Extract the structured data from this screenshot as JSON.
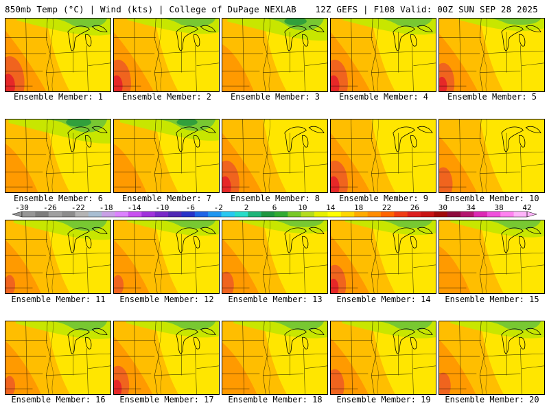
{
  "header": {
    "left": "850mb Temp (°C) | Wind (kts) | College of DuPage NEXLAB",
    "right": "12Z GEFS | F108 Valid: 00Z SUN SEP 28 2025"
  },
  "panels": [
    {
      "label": "Ensemble Member: 1",
      "warm_sw": 1.0,
      "cool_ne": 0.45
    },
    {
      "label": "Ensemble Member: 2",
      "warm_sw": 0.95,
      "cool_ne": 0.35
    },
    {
      "label": "Ensemble Member: 3",
      "warm_sw": 0.55,
      "cool_ne": 0.75
    },
    {
      "label": "Ensemble Member: 4",
      "warm_sw": 0.95,
      "cool_ne": 0.4
    },
    {
      "label": "Ensemble Member: 5",
      "warm_sw": 0.9,
      "cool_ne": 0.15
    },
    {
      "label": "Ensemble Member: 6",
      "warm_sw": 0.6,
      "cool_ne": 0.85
    },
    {
      "label": "Ensemble Member: 7",
      "warm_sw": 0.6,
      "cool_ne": 0.7
    },
    {
      "label": "Ensemble Member: 8",
      "warm_sw": 0.95,
      "cool_ne": 0.05
    },
    {
      "label": "Ensemble Member: 9",
      "warm_sw": 0.95,
      "cool_ne": 0.05
    },
    {
      "label": "Ensemble Member: 10",
      "warm_sw": 0.85,
      "cool_ne": 0.05
    },
    {
      "label": "Ensemble Member: 11",
      "warm_sw": 0.75,
      "cool_ne": 0.6
    },
    {
      "label": "Ensemble Member: 12",
      "warm_sw": 0.75,
      "cool_ne": 0.35
    },
    {
      "label": "Ensemble Member: 13",
      "warm_sw": 0.8,
      "cool_ne": 0.2
    },
    {
      "label": "Ensemble Member: 14",
      "warm_sw": 0.9,
      "cool_ne": 0.3
    },
    {
      "label": "Ensemble Member: 15",
      "warm_sw": 0.55,
      "cool_ne": 0.45
    },
    {
      "label": "Ensemble Member: 16",
      "warm_sw": 0.75,
      "cool_ne": 0.5
    },
    {
      "label": "Ensemble Member: 17",
      "warm_sw": 0.9,
      "cool_ne": 0.4
    },
    {
      "label": "Ensemble Member: 18",
      "warm_sw": 0.7,
      "cool_ne": 0.45
    },
    {
      "label": "Ensemble Member: 19",
      "warm_sw": 0.85,
      "cool_ne": 0.45
    },
    {
      "label": "Ensemble Member: 20",
      "warm_sw": 0.8,
      "cool_ne": 0.45
    }
  ],
  "colorbar": {
    "labels": [
      "-30",
      "-26",
      "-22",
      "-18",
      "-14",
      "-10",
      "-6",
      "-2",
      "2",
      "6",
      "10",
      "14",
      "18",
      "22",
      "26",
      "30",
      "34",
      "38",
      "42"
    ],
    "colors": [
      "#969696",
      "#7d7d7d",
      "#a0a0a0",
      "#8c8c8c",
      "#b4b4b4",
      "#a8bed2",
      "#c8a0e6",
      "#dc82ff",
      "#c850f0",
      "#a032dc",
      "#7828c8",
      "#5028b4",
      "#2832c8",
      "#1e64e6",
      "#1e96f0",
      "#28c8f0",
      "#28dcc8",
      "#1eb478",
      "#1e9640",
      "#32aa32",
      "#78c828",
      "#b4dc1e",
      "#e6f000",
      "#ffff00",
      "#ffd700",
      "#ffaa00",
      "#ff8c00",
      "#ff6400",
      "#f03c14",
      "#dc1e1e",
      "#c81414",
      "#a00a0a",
      "#8c0a3c",
      "#b4146e",
      "#dc28b4",
      "#f050dc",
      "#ff82f0",
      "#ffb4fa"
    ]
  },
  "colors": {
    "warm": "#f0641e",
    "hot": "#e62828",
    "orange": "#ff9a00",
    "light_orange": "#ffbe00",
    "yellow": "#ffea00",
    "lime": "#c8e600",
    "green": "#78c832",
    "dark_green": "#32a03c"
  }
}
